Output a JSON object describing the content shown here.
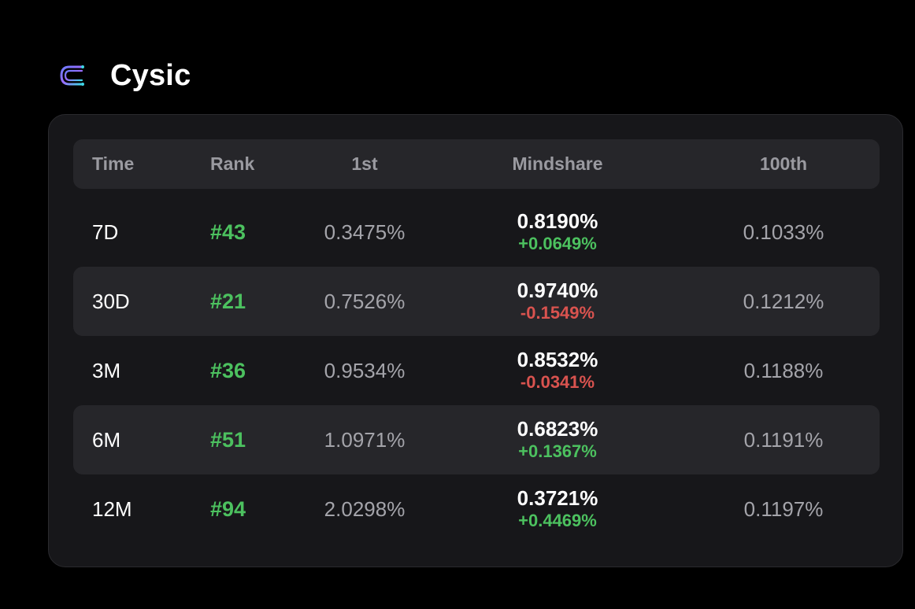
{
  "brand": {
    "name": "Cysic",
    "logo_icon": "cysic-logo-icon"
  },
  "table": {
    "headers": {
      "time": "Time",
      "rank": "Rank",
      "first": "1st",
      "mindshare": "Mindshare",
      "hundredth": "100th"
    },
    "rows": [
      {
        "time": "7D",
        "rank": "#43",
        "first": "0.3475%",
        "mindshare": "0.8190%",
        "delta": "+0.0649%",
        "delta_dir": "pos",
        "hundredth": "0.1033%"
      },
      {
        "time": "30D",
        "rank": "#21",
        "first": "0.7526%",
        "mindshare": "0.9740%",
        "delta": "-0.1549%",
        "delta_dir": "neg",
        "hundredth": "0.1212%"
      },
      {
        "time": "3M",
        "rank": "#36",
        "first": "0.9534%",
        "mindshare": "0.8532%",
        "delta": "-0.0341%",
        "delta_dir": "neg",
        "hundredth": "0.1188%"
      },
      {
        "time": "6M",
        "rank": "#51",
        "first": "1.0971%",
        "mindshare": "0.6823%",
        "delta": "+0.1367%",
        "delta_dir": "pos",
        "hundredth": "0.1191%"
      },
      {
        "time": "12M",
        "rank": "#94",
        "first": "2.0298%",
        "mindshare": "0.3721%",
        "delta": "+0.4469%",
        "delta_dir": "pos",
        "hundredth": "0.1197%"
      }
    ]
  },
  "colors": {
    "background": "#000000",
    "card": "#17171a",
    "row_alt": "#26262a",
    "positive": "#4cc15f",
    "negative": "#d9534f"
  }
}
